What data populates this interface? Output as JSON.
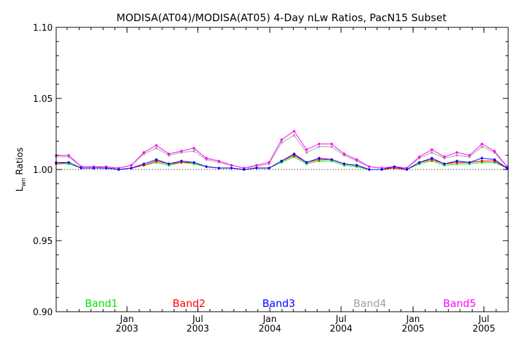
{
  "chart_data": {
    "type": "line",
    "title": "MODISA(AT04)/MODISA(AT05) 4-Day nLw Ratios, PacN15 Subset",
    "ylabel_main": "L",
    "ylabel_sub": "wn",
    "ylabel_rest": " Ratios",
    "ylim": [
      0.9,
      1.1
    ],
    "xlim": [
      "2002-07-04",
      "2005-09-01"
    ],
    "yticks": [
      {
        "value": 0.9,
        "label": "0.90"
      },
      {
        "value": 0.95,
        "label": "0.95"
      },
      {
        "value": 1.0,
        "label": "1.00"
      },
      {
        "value": 1.05,
        "label": "1.05"
      },
      {
        "value": 1.1,
        "label": "1.10"
      }
    ],
    "xticks": [
      {
        "date": "2003-01-01",
        "month": "Jan",
        "year": "2003"
      },
      {
        "date": "2003-07-01",
        "month": "Jul",
        "year": "2003"
      },
      {
        "date": "2004-01-01",
        "month": "Jan",
        "year": "2004"
      },
      {
        "date": "2004-07-01",
        "month": "Jul",
        "year": "2004"
      },
      {
        "date": "2005-01-01",
        "month": "Jan",
        "year": "2005"
      },
      {
        "date": "2005-07-01",
        "month": "Jul",
        "year": "2005"
      }
    ],
    "reference_line": 1.0,
    "x": [
      "2002-07-04",
      "2002-08-05",
      "2002-09-06",
      "2002-10-08",
      "2002-11-09",
      "2002-12-11",
      "2003-01-12",
      "2003-02-13",
      "2003-03-17",
      "2003-04-18",
      "2003-05-20",
      "2003-06-21",
      "2003-07-23",
      "2003-08-24",
      "2003-09-25",
      "2003-10-27",
      "2003-11-28",
      "2003-12-30",
      "2004-01-31",
      "2004-03-03",
      "2004-04-04",
      "2004-05-06",
      "2004-06-07",
      "2004-07-09",
      "2004-08-10",
      "2004-09-11",
      "2004-10-13",
      "2004-11-14",
      "2004-12-16",
      "2005-01-17",
      "2005-02-18",
      "2005-03-22",
      "2005-04-23",
      "2005-05-25",
      "2005-06-26",
      "2005-07-28",
      "2005-08-29"
    ],
    "series": [
      {
        "name": "Band1",
        "color": "#00e000",
        "values": [
          1.004,
          1.004,
          1.001,
          1.001,
          1.001,
          1.0,
          1.001,
          1.003,
          1.005,
          1.003,
          1.005,
          1.004,
          1.002,
          1.001,
          1.001,
          1.0,
          1.001,
          1.001,
          1.005,
          1.009,
          1.004,
          1.006,
          1.006,
          1.003,
          1.002,
          1.0,
          1.0,
          1.001,
          1.0,
          1.004,
          1.006,
          1.003,
          1.004,
          1.004,
          1.005,
          1.005,
          1.001
        ]
      },
      {
        "name": "Band2",
        "color": "#ff0000",
        "values": [
          1.004,
          1.005,
          1.001,
          1.001,
          1.001,
          1.0,
          1.001,
          1.003,
          1.006,
          1.004,
          1.005,
          1.005,
          1.002,
          1.001,
          1.001,
          1.0,
          1.001,
          1.001,
          1.006,
          1.01,
          1.005,
          1.007,
          1.007,
          1.004,
          1.003,
          1.0,
          1.0,
          1.001,
          1.0,
          1.005,
          1.007,
          1.004,
          1.005,
          1.005,
          1.006,
          1.006,
          1.001
        ]
      },
      {
        "name": "Band3",
        "color": "#0000ff",
        "values": [
          1.005,
          1.005,
          1.001,
          1.001,
          1.001,
          1.0,
          1.001,
          1.004,
          1.007,
          1.004,
          1.006,
          1.005,
          1.002,
          1.001,
          1.001,
          1.0,
          1.001,
          1.001,
          1.006,
          1.011,
          1.005,
          1.008,
          1.007,
          1.004,
          1.003,
          1.0,
          1.0,
          1.002,
          1.0,
          1.005,
          1.008,
          1.004,
          1.006,
          1.005,
          1.008,
          1.007,
          1.001
        ]
      },
      {
        "name": "Band4",
        "color": "#a0a0a0",
        "values": [
          1.009,
          1.009,
          1.002,
          1.002,
          1.001,
          1.001,
          1.003,
          1.011,
          1.015,
          1.01,
          1.012,
          1.013,
          1.007,
          1.005,
          1.003,
          1.001,
          1.002,
          1.004,
          1.019,
          1.024,
          1.012,
          1.016,
          1.016,
          1.01,
          1.006,
          1.002,
          1.001,
          1.002,
          1.001,
          1.008,
          1.012,
          1.008,
          1.01,
          1.009,
          1.016,
          1.012,
          1.002
        ]
      },
      {
        "name": "Band5",
        "color": "#ff00ff",
        "values": [
          1.01,
          1.01,
          1.002,
          1.002,
          1.002,
          1.001,
          1.003,
          1.012,
          1.017,
          1.011,
          1.013,
          1.015,
          1.008,
          1.006,
          1.003,
          1.001,
          1.003,
          1.005,
          1.021,
          1.027,
          1.014,
          1.018,
          1.018,
          1.011,
          1.007,
          1.002,
          1.001,
          1.002,
          1.001,
          1.009,
          1.014,
          1.009,
          1.012,
          1.01,
          1.018,
          1.013,
          1.002
        ]
      }
    ],
    "legend_placement": "bottom"
  }
}
